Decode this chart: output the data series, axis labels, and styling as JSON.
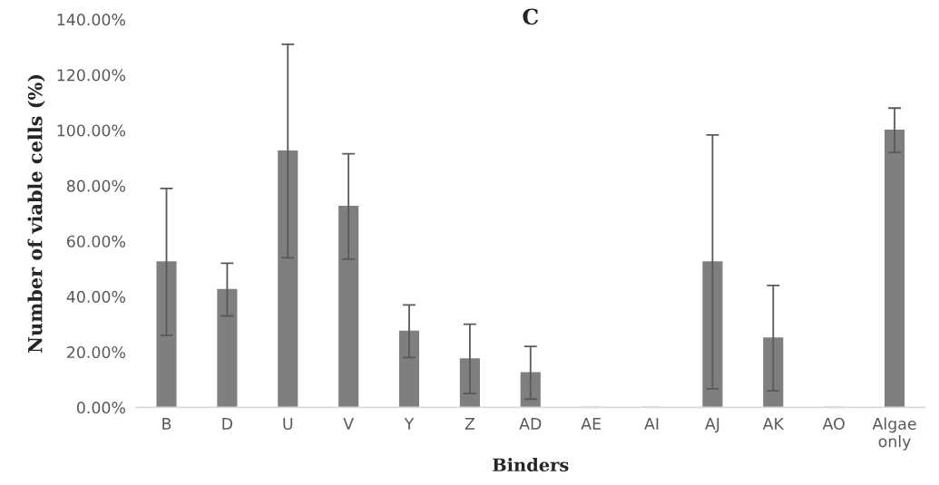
{
  "chart_data": {
    "type": "bar",
    "title": "C",
    "xlabel": "Binders",
    "ylabel": "Number of viable cells (%)",
    "categories": [
      "B",
      "D",
      "U",
      "V",
      "Y",
      "Z",
      "AD",
      "AE",
      "AI",
      "AJ",
      "AK",
      "AO",
      "Algae\nonly"
    ],
    "values": [
      52.5,
      42.5,
      92.5,
      72.5,
      27.5,
      17.5,
      12.5,
      0,
      0,
      52.5,
      25,
      0,
      100
    ],
    "errors": [
      26.5,
      9.5,
      38.5,
      19,
      9.5,
      12.5,
      9.5,
      null,
      null,
      45.8,
      19,
      null,
      8
    ],
    "color": "#7f7f7f",
    "ylim": [
      0,
      140
    ],
    "yticks": [
      {
        "value": 0,
        "label": "0.00%"
      },
      {
        "value": 20,
        "label": "20.00%"
      },
      {
        "value": 40,
        "label": "40.00%"
      },
      {
        "value": 60,
        "label": "60.00%"
      },
      {
        "value": 80,
        "label": "80.00%"
      },
      {
        "value": 100,
        "label": "100.00%"
      },
      {
        "value": 120,
        "label": "120.00%"
      },
      {
        "value": 140,
        "label": "140.00%"
      }
    ],
    "grid": false,
    "legend": false
  }
}
